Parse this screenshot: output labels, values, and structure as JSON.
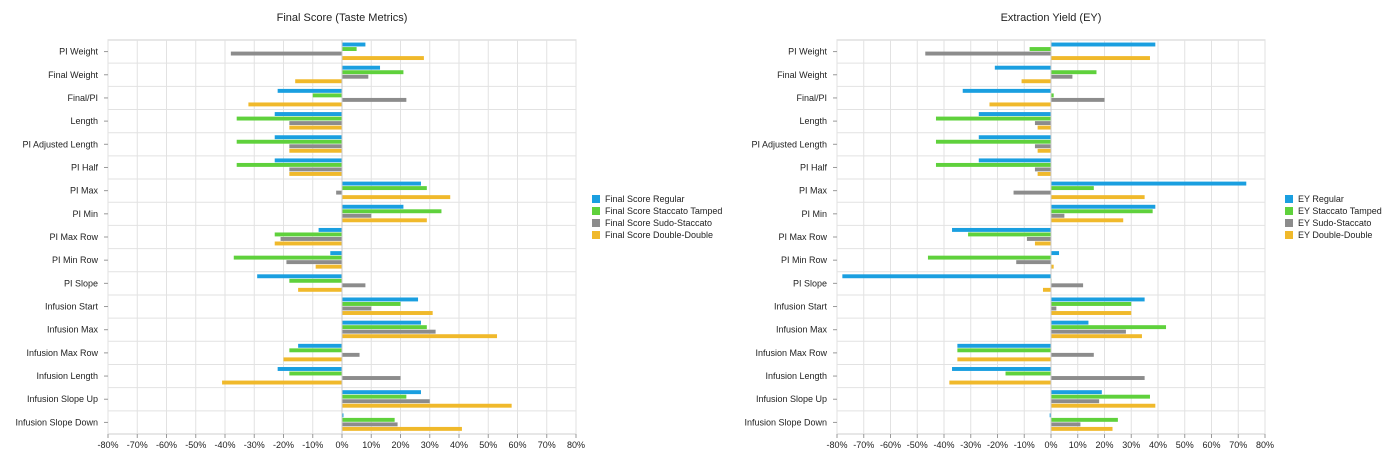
{
  "chart_data": [
    {
      "type": "bar",
      "orientation": "horizontal",
      "title": "Final Score (Taste Metrics)",
      "categories": [
        "PI Weight",
        "Final Weight",
        "Final/PI",
        "Length",
        "PI Adjusted Length",
        "PI Half",
        "PI Max",
        "PI Min",
        "PI Max Row",
        "PI Min Row",
        "PI Slope",
        "Infusion Start",
        "Infusion Max",
        "Infusion Max Row",
        "Infusion Length",
        "Infusion Slope Up",
        "Infusion Slope Down"
      ],
      "xlim": [
        -0.8,
        0.8
      ],
      "xticks": [
        -0.8,
        -0.7,
        -0.6,
        -0.5,
        -0.4,
        -0.3,
        -0.2,
        -0.1,
        0,
        0.1,
        0.2,
        0.3,
        0.4,
        0.5,
        0.6,
        0.7,
        0.8
      ],
      "xtick_labels": [
        "-80%",
        "-70%",
        "-60%",
        "-50%",
        "-40%",
        "-30%",
        "-20%",
        "-10%",
        "0%",
        "10%",
        "20%",
        "30%",
        "40%",
        "50%",
        "60%",
        "70%",
        "80%"
      ],
      "grid": true,
      "legend_position": "right",
      "series": [
        {
          "name": "Final Score Regular",
          "color": "#1a9fe0",
          "values": [
            0.08,
            0.13,
            -0.22,
            -0.23,
            -0.23,
            -0.23,
            0.27,
            0.21,
            -0.08,
            -0.04,
            -0.29,
            0.26,
            0.27,
            -0.15,
            -0.22,
            0.27,
            0.005
          ]
        },
        {
          "name": "Final Score Staccato Tamped",
          "color": "#5fd13c",
          "values": [
            0.05,
            0.21,
            -0.1,
            -0.36,
            -0.36,
            -0.36,
            0.29,
            0.34,
            -0.23,
            -0.37,
            -0.18,
            0.2,
            0.29,
            -0.18,
            -0.18,
            0.22,
            0.18
          ]
        },
        {
          "name": "Final Score Sudo-Staccato",
          "color": "#8c8c8c",
          "values": [
            -0.38,
            0.09,
            0.22,
            -0.18,
            -0.18,
            -0.18,
            -0.02,
            0.1,
            -0.21,
            -0.19,
            0.08,
            0.1,
            0.32,
            0.06,
            0.2,
            0.3,
            0.19
          ]
        },
        {
          "name": "Final Score Double-Double",
          "color": "#f0b92b",
          "values": [
            0.28,
            -0.16,
            -0.32,
            -0.18,
            -0.18,
            -0.18,
            0.37,
            0.29,
            -0.23,
            -0.09,
            -0.15,
            0.31,
            0.53,
            -0.2,
            -0.41,
            0.58,
            0.41
          ]
        }
      ]
    },
    {
      "type": "bar",
      "orientation": "horizontal",
      "title": "Extraction Yield (EY)",
      "categories": [
        "PI Weight",
        "Final Weight",
        "Final/PI",
        "Length",
        "PI Adjusted Length",
        "PI Half",
        "PI Max",
        "PI Min",
        "PI Max Row",
        "PI Min Row",
        "PI Slope",
        "Infusion Start",
        "Infusion Max",
        "Infusion Max Row",
        "Infusion Length",
        "Infusion Slope Up",
        "Infusion Slope Down"
      ],
      "xlim": [
        -0.8,
        0.8
      ],
      "xticks": [
        -0.8,
        -0.7,
        -0.6,
        -0.5,
        -0.4,
        -0.3,
        -0.2,
        -0.1,
        0,
        0.1,
        0.2,
        0.3,
        0.4,
        0.5,
        0.6,
        0.7,
        0.8
      ],
      "xtick_labels": [
        "-80%",
        "-70%",
        "-60%",
        "-50%",
        "-40%",
        "-30%",
        "-20%",
        "-10%",
        "0%",
        "10%",
        "20%",
        "30%",
        "40%",
        "50%",
        "60%",
        "70%",
        "80%"
      ],
      "grid": true,
      "legend_position": "right",
      "series": [
        {
          "name": "EY Regular",
          "color": "#1a9fe0",
          "values": [
            0.39,
            -0.21,
            -0.33,
            -0.27,
            -0.27,
            -0.27,
            0.73,
            0.39,
            -0.37,
            0.03,
            -0.78,
            0.35,
            0.14,
            -0.35,
            -0.37,
            0.19,
            -0.005
          ]
        },
        {
          "name": "EY Staccato Tamped",
          "color": "#5fd13c",
          "values": [
            -0.08,
            0.17,
            0.01,
            -0.43,
            -0.43,
            -0.43,
            0.16,
            0.38,
            -0.31,
            -0.46,
            0.0,
            0.3,
            0.43,
            -0.35,
            -0.17,
            0.37,
            0.25
          ]
        },
        {
          "name": "EY Sudo-Staccato",
          "color": "#8c8c8c",
          "values": [
            -0.47,
            0.08,
            0.2,
            -0.06,
            -0.06,
            -0.06,
            -0.14,
            0.05,
            -0.09,
            -0.13,
            0.12,
            0.02,
            0.28,
            0.16,
            0.35,
            0.18,
            0.11
          ]
        },
        {
          "name": "EY Double-Double",
          "color": "#f0b92b",
          "values": [
            0.37,
            -0.11,
            -0.23,
            -0.05,
            -0.05,
            -0.05,
            0.35,
            0.27,
            -0.06,
            0.01,
            -0.03,
            0.3,
            0.34,
            -0.35,
            -0.38,
            0.39,
            0.23
          ]
        }
      ]
    }
  ]
}
